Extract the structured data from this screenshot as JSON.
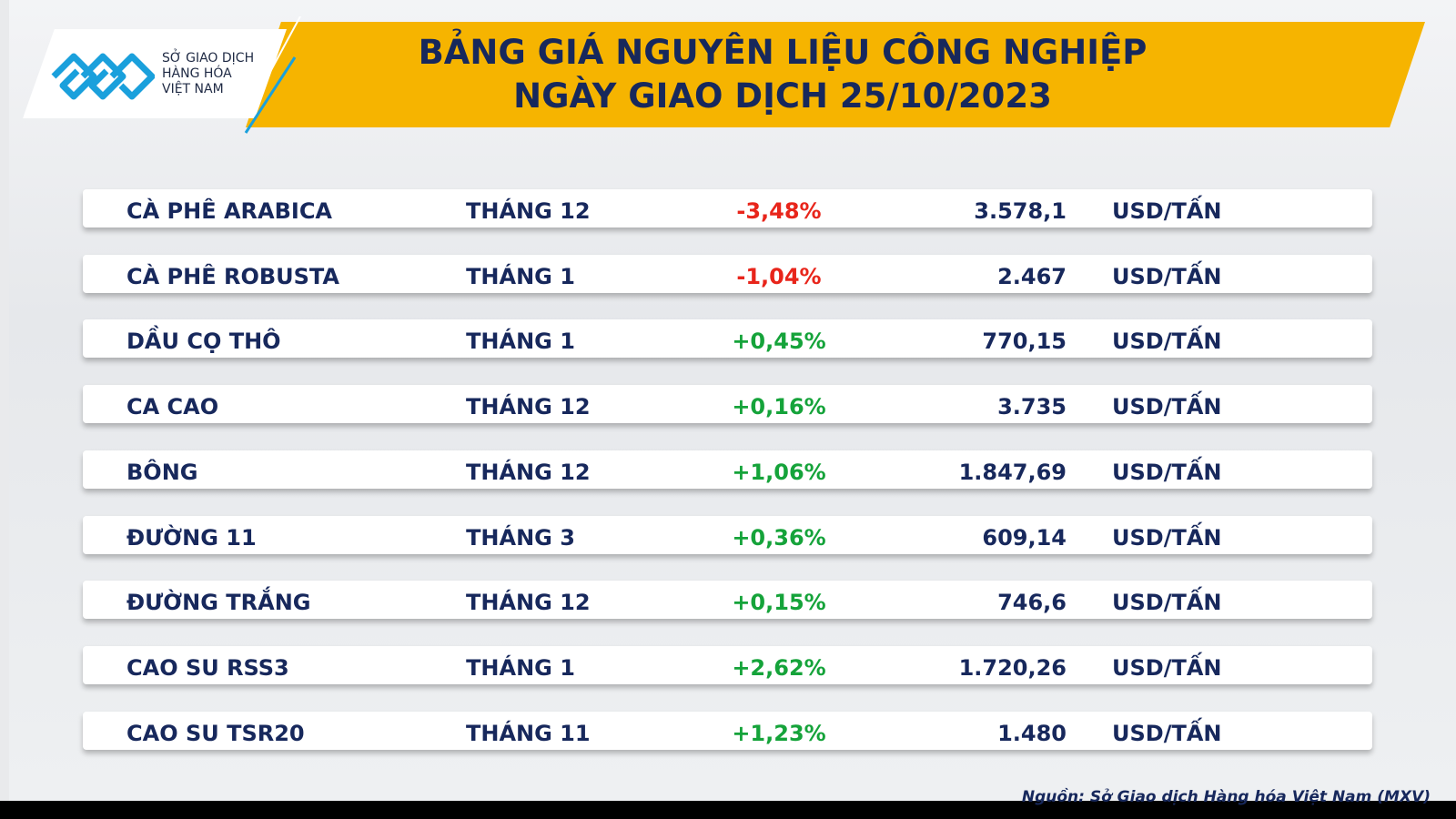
{
  "logo": {
    "lines": [
      "SỞ GIAO DỊCH",
      "HÀNG HÓA",
      "VIỆT NAM"
    ]
  },
  "header": {
    "title": [
      "BẢNG GIÁ NGUYÊN LIỆU CÔNG NGHIỆP",
      "NGÀY GIAO DỊCH 25/10/2023"
    ]
  },
  "table": {
    "rows": [
      [
        "CÀ PHÊ ARABICA",
        "THÁNG 12",
        "-3,48%",
        "3.578,1",
        "USD/TẤN"
      ],
      [
        "CÀ PHÊ ROBUSTA",
        "THÁNG 1",
        "-1,04%",
        "2.467",
        "USD/TẤN"
      ],
      [
        "DẦU CỌ THÔ",
        "THÁNG 1",
        "+0,45%",
        "770,15",
        "USD/TẤN"
      ],
      [
        "CA CAO",
        "THÁNG 12",
        "+0,16%",
        "3.735",
        "USD/TẤN"
      ],
      [
        "BÔNG",
        "THÁNG 12",
        "+1,06%",
        "1.847,69",
        "USD/TẤN"
      ],
      [
        "ĐƯỜNG 11",
        "THÁNG 3",
        "+0,36%",
        "609,14",
        "USD/TẤN"
      ],
      [
        "ĐƯỜNG TRẮNG",
        "THÁNG 12",
        "+0,15%",
        "746,6",
        "USD/TẤN"
      ],
      [
        "CAO SU RSS3",
        "THÁNG 1",
        "+2,62%",
        "1.720,26",
        "USD/TẤN"
      ],
      [
        "CAO SU TSR20",
        "THÁNG 11",
        "+1,23%",
        "1.480",
        "USD/TẤN"
      ]
    ]
  },
  "source": "Nguồn: Sở Giao dịch Hàng hóa Việt Nam (MXV)"
}
